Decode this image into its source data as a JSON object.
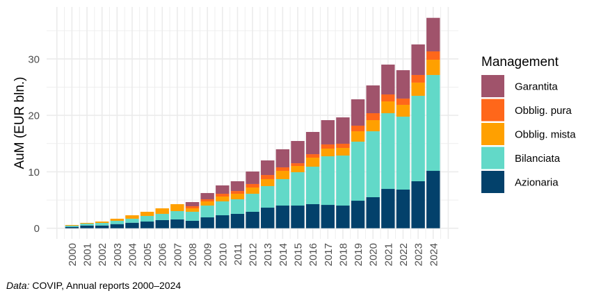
{
  "chart_data": {
    "type": "bar",
    "stacked": true,
    "title": "",
    "xlabel": "",
    "ylabel": "AuM (EUR bln.)",
    "ylim": [
      0,
      38
    ],
    "yticks": [
      0,
      10,
      20,
      30
    ],
    "ytick_labels": [
      "0",
      "10",
      "20",
      "30"
    ],
    "grid": true,
    "legend_position": "right",
    "legend_title": "Management",
    "categories": [
      "2000",
      "2001",
      "2002",
      "2003",
      "2004",
      "2005",
      "2006",
      "2007",
      "2008",
      "2009",
      "2010",
      "2011",
      "2012",
      "2013",
      "2014",
      "2015",
      "2016",
      "2017",
      "2018",
      "2019",
      "2020",
      "2021",
      "2022",
      "2023",
      "2024"
    ],
    "series": [
      {
        "name": "Azionaria",
        "color": "#03416b",
        "values": [
          0.25,
          0.49,
          0.49,
          0.74,
          0.98,
          1.19,
          1.44,
          1.56,
          1.32,
          1.93,
          2.3,
          2.55,
          2.92,
          3.65,
          4.02,
          4.02,
          4.27,
          4.14,
          4.02,
          4.88,
          5.5,
          6.97,
          6.85,
          8.33,
          10.17
        ]
      },
      {
        "name": "Bilanciata",
        "color": "#62d9c8",
        "values": [
          0.21,
          0.33,
          0.46,
          0.58,
          0.71,
          0.99,
          1.11,
          1.48,
          1.6,
          2.09,
          2.46,
          2.58,
          3.19,
          3.82,
          4.68,
          5.91,
          6.64,
          8.61,
          8.86,
          10.46,
          11.68,
          13.41,
          12.92,
          15.13,
          16.98
        ]
      },
      {
        "name": "Obblig. mista",
        "color": "#ffa000",
        "values": [
          0.12,
          0.13,
          0.24,
          0.37,
          0.61,
          0.74,
          0.98,
          1.23,
          0.61,
          0.74,
          0.86,
          0.98,
          1.11,
          1.23,
          1.47,
          1.1,
          1.6,
          1.36,
          1.35,
          1.84,
          1.97,
          2.09,
          2.09,
          2.34,
          2.7
        ]
      },
      {
        "name": "Obblig. pura",
        "color": "#ff671a",
        "values": [
          0,
          0,
          0,
          0,
          0,
          0,
          0,
          0,
          0.37,
          0.37,
          0.49,
          0.49,
          0.62,
          0.73,
          0.62,
          0.49,
          0.61,
          0.74,
          0.74,
          0.99,
          1.23,
          1.23,
          1.11,
          1.35,
          1.48
        ]
      },
      {
        "name": "Garantita",
        "color": "#a0536b",
        "values": [
          0,
          0,
          0,
          0,
          0,
          0,
          0,
          0,
          0.74,
          1.11,
          1.48,
          1.73,
          2.21,
          2.59,
          3.2,
          3.94,
          3.94,
          4.3,
          4.67,
          4.67,
          4.92,
          5.29,
          5.03,
          5.41,
          5.94
        ]
      }
    ],
    "legend_order": [
      "Garantita",
      "Obblig. pura",
      "Obblig. mista",
      "Bilanciata",
      "Azionaria"
    ]
  },
  "caption": {
    "label": "Data:",
    "text": " COVIP, Annual reports 2000–2024"
  }
}
